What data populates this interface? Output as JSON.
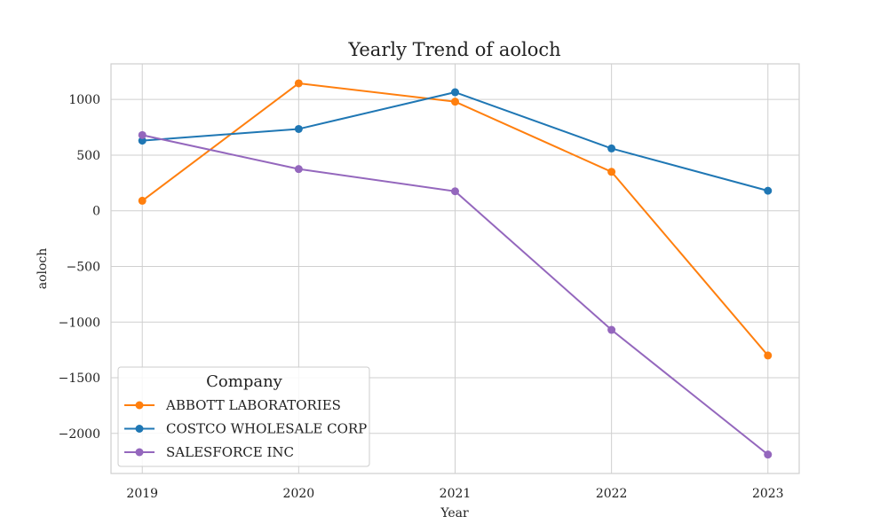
{
  "chart_data": {
    "type": "line",
    "title": "Yearly Trend of aoloch",
    "xlabel": "Year",
    "ylabel": "aoloch",
    "x": [
      2019,
      2020,
      2021,
      2022,
      2023
    ],
    "x_tick_labels": [
      "2019",
      "2020",
      "2021",
      "2022",
      "2023"
    ],
    "y_ticks": [
      1000,
      500,
      0,
      -500,
      -1000,
      -1500,
      -2000
    ],
    "y_tick_labels": [
      "1000",
      "500",
      "0",
      "−500",
      "−1000",
      "−1500",
      "−2000"
    ],
    "xlim": [
      2018.8,
      2023.2
    ],
    "ylim": [
      -2360,
      1320
    ],
    "grid": true,
    "legend": {
      "title": "Company",
      "placement": "lower-left"
    },
    "series": [
      {
        "name": "ABBOTT LABORATORIES",
        "color": "#ff7f0e",
        "values": [
          90,
          1145,
          980,
          350,
          -1300
        ]
      },
      {
        "name": "COSTCO WHOLESALE CORP",
        "color": "#1f77b4",
        "values": [
          630,
          735,
          1065,
          560,
          180
        ]
      },
      {
        "name": "SALESFORCE INC",
        "color": "#9467bd",
        "values": [
          680,
          375,
          175,
          -1070,
          -2190
        ]
      }
    ]
  }
}
